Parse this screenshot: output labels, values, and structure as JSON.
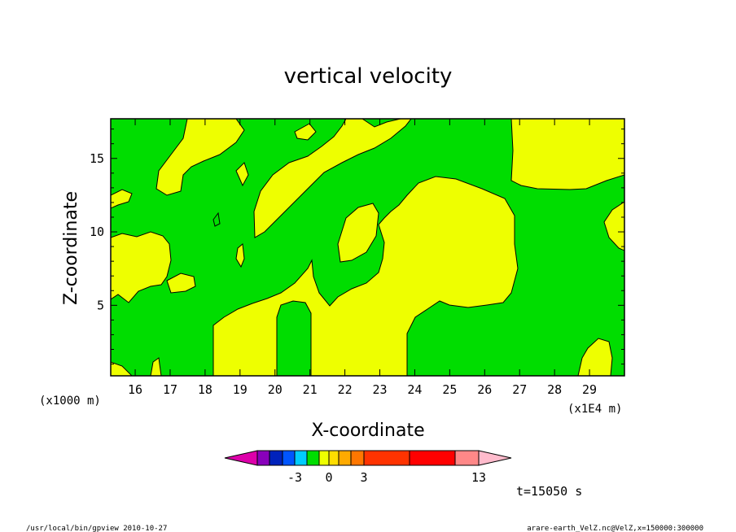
{
  "chart_data": {
    "type": "heatmap",
    "title": "vertical velocity",
    "xlabel": "X-coordinate",
    "ylabel": "Z-coordinate",
    "x_unit": "(x1E4 m)",
    "y_unit": "(x1000 m)",
    "xlim": [
      15.3,
      30.0
    ],
    "ylim": [
      0.2,
      17.7
    ],
    "x_ticks": [
      16,
      17,
      18,
      19,
      20,
      21,
      22,
      23,
      24,
      25,
      26,
      27,
      28,
      29
    ],
    "y_ticks": [
      5,
      10,
      15
    ],
    "field_colors": {
      "negative_small": "#00dd00",
      "positive_small": "#eeff00"
    },
    "colorbar": {
      "colors": [
        "#dd00aa",
        "#8800bb",
        "#0022bb",
        "#0055ff",
        "#00ccff",
        "#00dd00",
        "#eeff00",
        "#ffdd00",
        "#ffaa00",
        "#ff7700",
        "#ff3300",
        "#ff0000",
        "#ff8888",
        "#ffbbcc"
      ],
      "boundaries": [
        -5,
        -4,
        -3,
        -2,
        -1,
        0,
        1,
        2,
        3,
        5,
        8,
        11,
        13
      ],
      "tick_labels": [
        "-3",
        "0",
        "3",
        "13"
      ]
    },
    "time_label": "t=15050 s"
  },
  "footer": {
    "left": "/usr/local/bin/gpview  2010-10-27",
    "right": "arare-earth_VelZ.nc@VelZ,x=150000:300000"
  }
}
